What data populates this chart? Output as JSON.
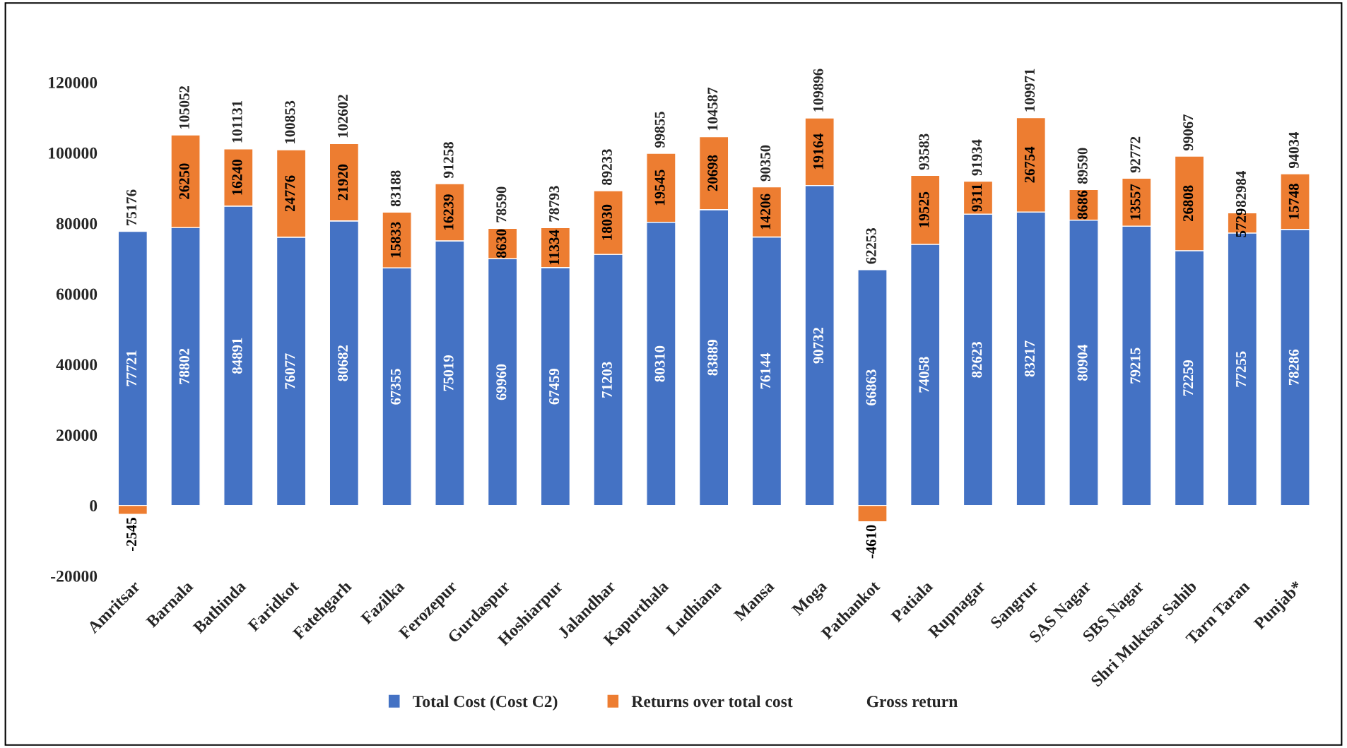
{
  "chart_data": {
    "type": "bar",
    "stacked": true,
    "categories": [
      "Amritsar",
      "Barnala",
      "Bathinda",
      "Faridkot",
      "Fatehgarh",
      "Fazilka",
      "Ferozepur",
      "Gurdaspur",
      "Hoshiarpur",
      "Jalandhar",
      "Kapurthala",
      "Ludhiana",
      "Mansa",
      "Moga",
      "Pathankot",
      "Patiala",
      "Rupnagar",
      "Sangrur",
      "SAS Nagar",
      "SBS Nagar",
      "Shri Muktsar Sahib",
      "Tarn Taran",
      "Punjab*"
    ],
    "series": [
      {
        "name": "Total Cost (Cost C2)",
        "color": "#4472c4",
        "values": [
          77721,
          78802,
          84891,
          76077,
          80682,
          67355,
          75019,
          69960,
          67459,
          71203,
          80310,
          83889,
          76144,
          90732,
          66863,
          74058,
          82623,
          83217,
          80904,
          79215,
          72259,
          77255,
          78286
        ]
      },
      {
        "name": "Returns over total cost",
        "color": "#ed7d31",
        "values": [
          -2545,
          26250,
          16240,
          24776,
          21920,
          15833,
          16239,
          8630,
          11334,
          18030,
          19545,
          20698,
          14206,
          19164,
          -4610,
          19525,
          9311,
          26754,
          8686,
          13557,
          26808,
          5729,
          15748
        ]
      }
    ],
    "totals": [
      "75176",
      "105052",
      "101131",
      "100853",
      "102602",
      "83188",
      "91258",
      "78590",
      "78793",
      "89233",
      "99855",
      "104587",
      "90350",
      "109896",
      "62253",
      "93583",
      "91934",
      "109971",
      "89590",
      "92772",
      "99067",
      "82984",
      "94034"
    ],
    "annotations": [
      "Gross return"
    ],
    "ylim": [
      -20000,
      120000
    ],
    "yticks": [
      -20000,
      0,
      20000,
      40000,
      60000,
      80000,
      100000,
      120000
    ],
    "data_labels": true,
    "grid": false,
    "legend": "bottom"
  }
}
